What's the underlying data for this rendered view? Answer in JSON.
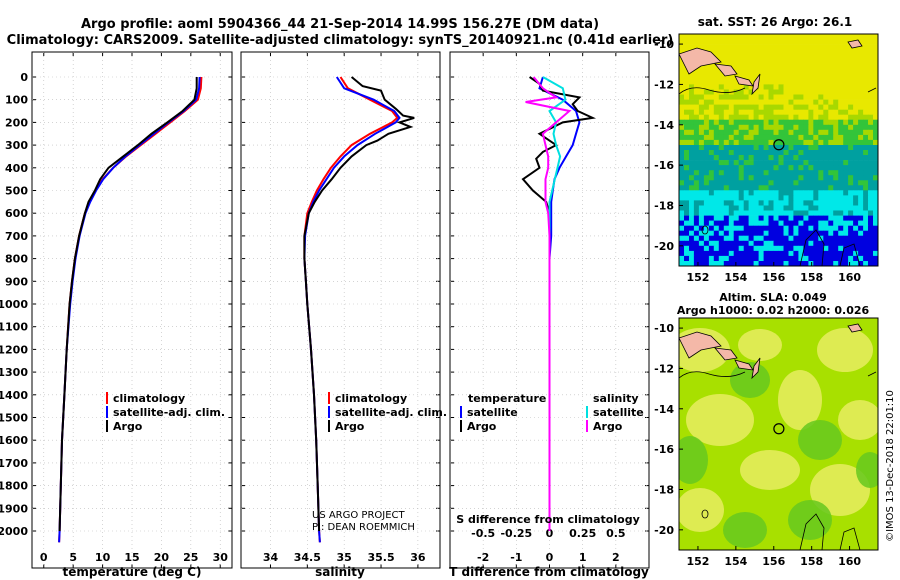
{
  "header": {
    "line1": "Argo profile: aoml 5904366_44 21-Sep-2014 14.99S 156.27E (DM data)",
    "line2": "Climatology: CARS2009. Satellite-adjusted climatology: synTS_20140921.nc (0.41d earlier)"
  },
  "colors": {
    "climatology": "#ff0000",
    "satellite": "#0000ff",
    "argo": "#000000",
    "sat_salinity": "#00e0e0",
    "argo_salinity": "#ff00ff"
  },
  "depth_ticks": [
    "0",
    "100",
    "200",
    "300",
    "400",
    "500",
    "600",
    "700",
    "800",
    "900",
    "1000",
    "1100",
    "1200",
    "1300",
    "1400",
    "1500",
    "1600",
    "1700",
    "1800",
    "1900",
    "2000"
  ],
  "credits": {
    "line1": "US ARGO PROJECT",
    "line2": "PI: DEAN ROEMMICH"
  },
  "watermark": "©IMOS 13-Dec-2018 22:01:10",
  "maps": {
    "sst_title": "sat. SST: 26 Argo: 26.1",
    "sla_title1": "Altim. SLA: 0.049",
    "sla_title2": "Argo h1000: 0.02 h2000: 0.026",
    "lat_ticks": [
      "-10",
      "-12",
      "-14",
      "-16",
      "-18",
      "-20"
    ],
    "lon_ticks": [
      "152",
      "154",
      "156",
      "158",
      "160"
    ]
  },
  "chart_data": [
    {
      "type": "line",
      "xlabel": "temperature (deg C)",
      "ylabel": "",
      "xlim": [
        -2,
        32
      ],
      "ylim": [
        2050,
        0
      ],
      "xticks": [
        "0",
        "5",
        "10",
        "15",
        "20",
        "25",
        "30"
      ],
      "legend": [
        "climatology",
        "satellite-adj. clim.",
        "Argo"
      ],
      "series": [
        {
          "name": "climatology",
          "depth": [
            0,
            50,
            100,
            150,
            200,
            250,
            300,
            350,
            400,
            450,
            500,
            550,
            600,
            700,
            800,
            900,
            1000,
            1200,
            1400,
            1600,
            1800,
            2000,
            2050
          ],
          "values": [
            26.8,
            26.7,
            26.2,
            24.0,
            21.5,
            19.0,
            16.5,
            14.0,
            11.8,
            10.0,
            8.8,
            7.8,
            7.0,
            6.0,
            5.3,
            4.8,
            4.4,
            3.9,
            3.5,
            3.1,
            2.9,
            2.7,
            2.6
          ]
        },
        {
          "name": "satellite-adj. clim.",
          "depth": [
            0,
            50,
            100,
            150,
            200,
            250,
            300,
            350,
            400,
            450,
            500,
            550,
            600,
            700,
            800,
            900,
            1000,
            1200,
            1400,
            1600,
            1800,
            2000,
            2050
          ],
          "values": [
            26.5,
            26.4,
            25.9,
            23.8,
            21.2,
            18.7,
            16.3,
            13.9,
            11.8,
            10.1,
            8.9,
            7.9,
            7.1,
            6.1,
            5.4,
            4.9,
            4.5,
            3.9,
            3.5,
            3.1,
            2.9,
            2.7,
            2.6
          ]
        },
        {
          "name": "Argo",
          "depth": [
            0,
            50,
            100,
            150,
            200,
            250,
            300,
            350,
            400,
            450,
            500,
            550,
            600,
            700,
            800,
            900,
            1000,
            1200,
            1400,
            1600,
            1800,
            2000
          ],
          "values": [
            26.0,
            26.0,
            25.6,
            23.6,
            21.0,
            18.3,
            16.0,
            13.5,
            11.0,
            9.6,
            8.7,
            7.6,
            7.0,
            6.0,
            5.3,
            4.8,
            4.4,
            3.9,
            3.5,
            3.1,
            2.9,
            2.7
          ]
        }
      ]
    },
    {
      "type": "line",
      "xlabel": "salinity",
      "ylabel": "",
      "xlim": [
        33.6,
        36.3
      ],
      "ylim": [
        2050,
        0
      ],
      "xticks": [
        "34",
        "34.5",
        "35",
        "35.5",
        "36"
      ],
      "legend": [
        "climatology",
        "satellite-adj. clim.",
        "Argo"
      ],
      "series": [
        {
          "name": "climatology",
          "depth": [
            0,
            50,
            100,
            150,
            180,
            200,
            250,
            300,
            350,
            400,
            450,
            500,
            550,
            600,
            700,
            800,
            900,
            1000,
            1200,
            1400,
            1600,
            1800,
            2000,
            2050
          ],
          "values": [
            34.95,
            35.05,
            35.35,
            35.65,
            35.72,
            35.65,
            35.35,
            35.1,
            34.95,
            34.82,
            34.72,
            34.63,
            34.56,
            34.5,
            34.46,
            34.46,
            34.48,
            34.5,
            34.55,
            34.59,
            34.62,
            34.64,
            34.66,
            34.67
          ]
        },
        {
          "name": "satellite-adj. clim.",
          "depth": [
            0,
            50,
            100,
            150,
            180,
            200,
            250,
            300,
            350,
            400,
            450,
            500,
            550,
            600,
            700,
            800,
            900,
            1000,
            1200,
            1400,
            1600,
            1800,
            2000,
            2050
          ],
          "values": [
            34.9,
            35.0,
            35.4,
            35.68,
            35.75,
            35.7,
            35.42,
            35.18,
            35.0,
            34.86,
            34.76,
            34.66,
            34.58,
            34.52,
            34.47,
            34.46,
            34.48,
            34.5,
            34.55,
            34.59,
            34.62,
            34.64,
            34.66,
            34.67
          ]
        },
        {
          "name": "Argo",
          "depth": [
            0,
            40,
            60,
            100,
            140,
            170,
            180,
            200,
            220,
            250,
            280,
            300,
            350,
            400,
            450,
            500,
            550,
            600,
            700,
            800,
            900,
            1000,
            1200,
            1400,
            1600,
            1800,
            2000
          ],
          "values": [
            35.1,
            35.25,
            35.5,
            35.55,
            35.7,
            35.8,
            35.95,
            35.75,
            35.9,
            35.6,
            35.45,
            35.3,
            35.1,
            34.95,
            34.83,
            34.7,
            34.6,
            34.52,
            34.46,
            34.46,
            34.48,
            34.5,
            34.55,
            34.59,
            34.62,
            34.64,
            34.66
          ]
        }
      ]
    },
    {
      "type": "line",
      "xlabel": "T difference from climatology",
      "x2label": "S difference from climatology",
      "ylabel": "",
      "xlim": [
        -3,
        3
      ],
      "ylim": [
        2050,
        0
      ],
      "xticks": [
        "-2",
        "-1",
        "0",
        "1",
        "2"
      ],
      "x2ticks": [
        "-0.5",
        "-0.25",
        "0",
        "0.25",
        "0.5"
      ],
      "legend_left_title": "temperature",
      "legend_right_title": "salinity",
      "legend": [
        "satellite",
        "Argo",
        "satellite",
        "Argo"
      ],
      "series": [
        {
          "name": "temperature satellite",
          "depth": [
            0,
            50,
            100,
            150,
            200,
            250,
            300,
            350,
            400,
            450,
            500,
            550,
            600,
            700,
            800,
            900,
            1000,
            1200,
            1400,
            1600,
            1800,
            2000
          ],
          "values": [
            -0.2,
            -0.3,
            0.4,
            0.8,
            0.9,
            0.8,
            0.7,
            0.5,
            0.3,
            0.15,
            0.1,
            0.05,
            0.05,
            0.05,
            0.0,
            0.0,
            0.0,
            0.0,
            0.0,
            0.0,
            0.0,
            0.0
          ]
        },
        {
          "name": "temperature Argo",
          "depth": [
            0,
            30,
            60,
            90,
            120,
            150,
            180,
            200,
            250,
            300,
            330,
            360,
            400,
            450,
            500,
            550,
            600,
            700,
            800,
            1000,
            1500,
            2000
          ],
          "values": [
            -0.6,
            -0.3,
            -0.2,
            0.9,
            0.7,
            0.85,
            1.3,
            0.4,
            -0.3,
            0.2,
            -0.2,
            -0.4,
            -0.3,
            -0.8,
            -0.5,
            -0.1,
            0.0,
            0.0,
            0.0,
            0.0,
            0.0,
            0.0
          ]
        },
        {
          "name": "salinity satellite",
          "depth": [
            0,
            50,
            100,
            150,
            200,
            250,
            300,
            350,
            400,
            450,
            500,
            550,
            600,
            700,
            800,
            1000,
            1500,
            2000
          ],
          "values": [
            -0.05,
            0.1,
            0.12,
            0.0,
            0.05,
            0.03,
            0.05,
            0.08,
            0.06,
            0.04,
            0.02,
            0.0,
            0.0,
            0.0,
            0.0,
            0.0,
            0.0,
            0.0
          ]
        },
        {
          "name": "salinity Argo",
          "depth": [
            0,
            50,
            90,
            110,
            150,
            200,
            250,
            300,
            350,
            400,
            450,
            500,
            550,
            600,
            700,
            800,
            1000,
            1500,
            2000
          ],
          "values": [
            -0.12,
            -0.05,
            0.05,
            -0.18,
            0.15,
            0.05,
            -0.05,
            -0.03,
            -0.01,
            -0.01,
            -0.03,
            -0.03,
            -0.03,
            -0.01,
            0.0,
            0.0,
            0.0,
            0.0,
            0.0
          ]
        }
      ]
    },
    {
      "type": "heatmap",
      "title": "sat. SST: 26 Argo: 26.1",
      "xlim": [
        151,
        161.5
      ],
      "ylim": [
        -21,
        -9.5
      ],
      "xticks": [
        "152",
        "154",
        "156",
        "158",
        "160"
      ],
      "yticks": [
        "-10",
        "-12",
        "-14",
        "-16",
        "-18",
        "-20"
      ],
      "float_position": {
        "lon": 156.27,
        "lat": -14.99
      }
    },
    {
      "type": "heatmap",
      "title": "Altim. SLA: 0.049",
      "subtitle": "Argo h1000: 0.02 h2000: 0.026",
      "xlim": [
        151,
        161.5
      ],
      "ylim": [
        -21,
        -9.5
      ],
      "xticks": [
        "152",
        "154",
        "156",
        "158",
        "160"
      ],
      "yticks": [
        "-10",
        "-12",
        "-14",
        "-16",
        "-18",
        "-20"
      ],
      "float_position": {
        "lon": 156.27,
        "lat": -14.99
      }
    }
  ]
}
